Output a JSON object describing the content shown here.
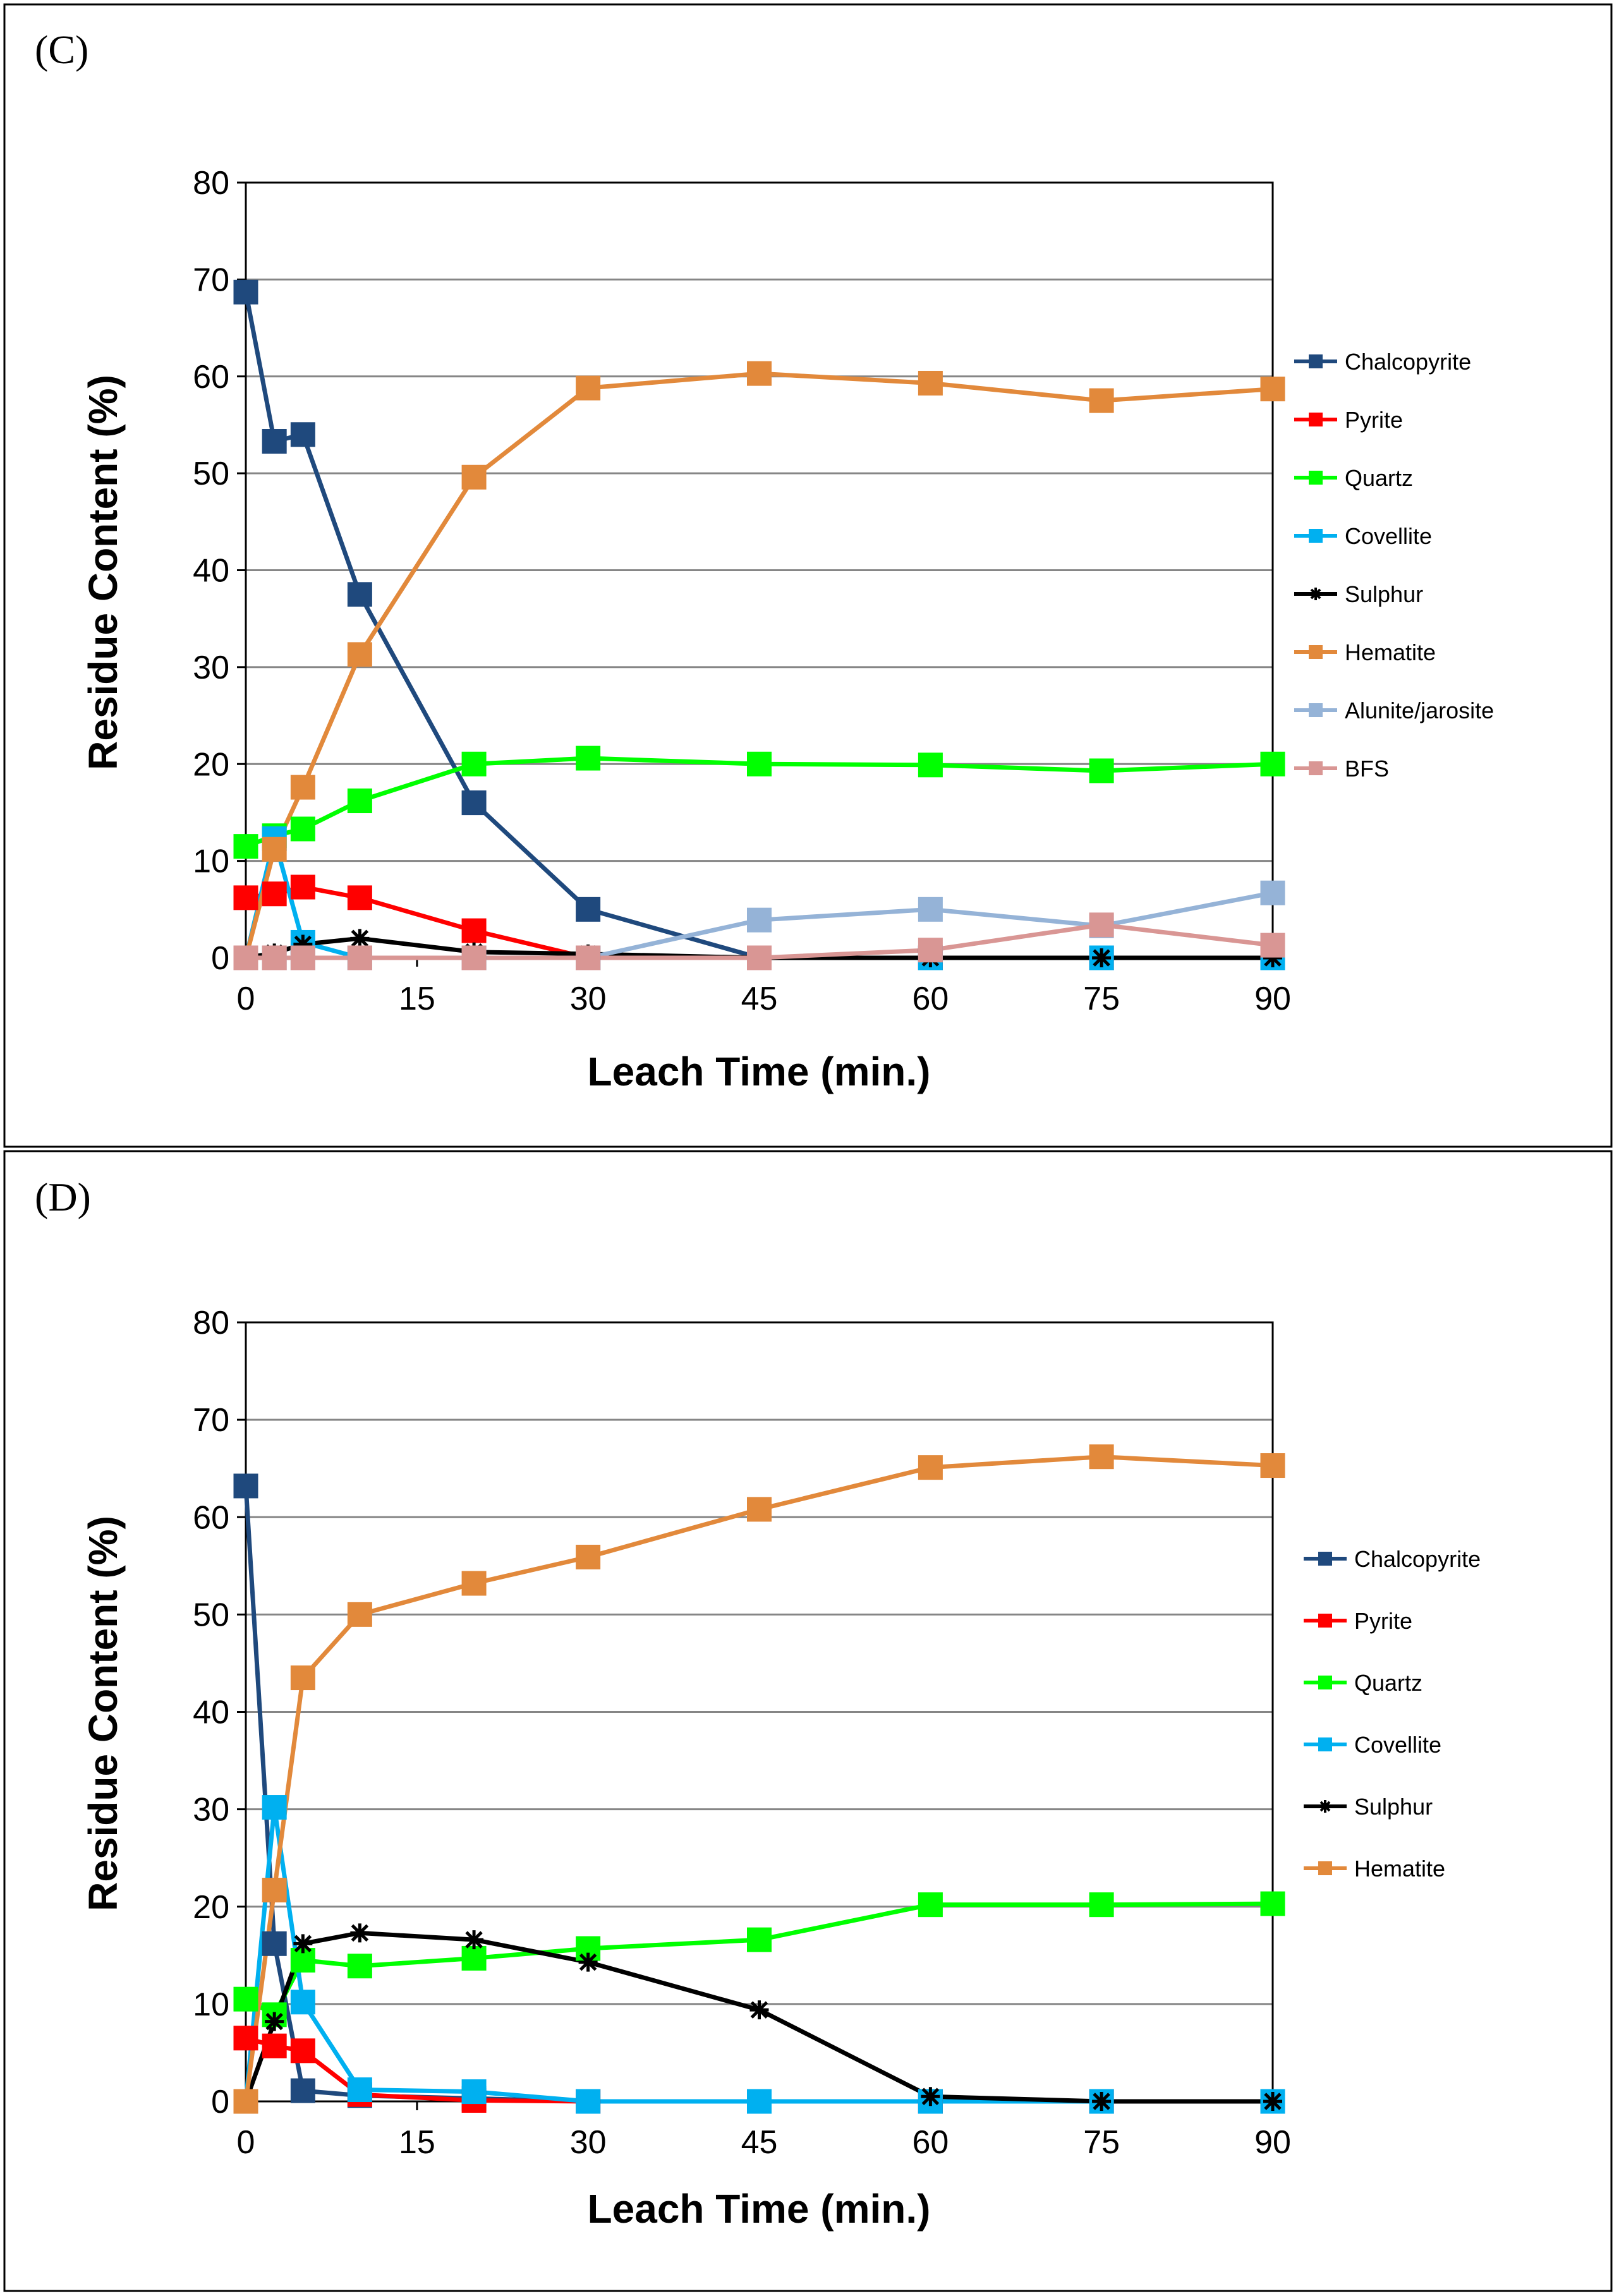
{
  "figure": {
    "panels": [
      "(C)",
      "(D)"
    ]
  },
  "chart_data": [
    {
      "type": "line",
      "panel_label": "(C)",
      "xlabel": "Leach Time (min.)",
      "ylabel": "Residue Content (%)",
      "ylim": [
        0,
        80
      ],
      "yticks": [
        0,
        10,
        20,
        30,
        40,
        50,
        60,
        70,
        80
      ],
      "x_categories": [
        "0",
        "15",
        "30",
        "45",
        "60",
        "75",
        "90"
      ],
      "x_note": "points are placed on a categorical axis; 2.5, 5, 10, 20 min sit between the 0 and 30 categories",
      "x": [
        0,
        2.5,
        5,
        10,
        20,
        30,
        45,
        60,
        75,
        90
      ],
      "grid": true,
      "legend_position": "right",
      "series": [
        {
          "name": "Chalcopyrite",
          "color": "#1f497d",
          "marker": "square",
          "values": [
            68.7,
            53.3,
            54.0,
            37.5,
            16.0,
            5.0,
            0,
            0,
            0,
            0
          ]
        },
        {
          "name": "Pyrite",
          "color": "#ff0000",
          "marker": "square",
          "values": [
            6.2,
            6.6,
            7.3,
            6.2,
            2.8,
            0,
            0,
            0,
            0,
            0
          ]
        },
        {
          "name": "Quartz",
          "color": "#00ff00",
          "marker": "square",
          "values": [
            11.5,
            12.6,
            13.3,
            16.2,
            20.0,
            20.6,
            20.0,
            19.9,
            19.3,
            20.0
          ]
        },
        {
          "name": "Covellite",
          "color": "#00b0f0",
          "marker": "square",
          "values": [
            0,
            12.3,
            1.6,
            0,
            0,
            0,
            0,
            0,
            0,
            0
          ]
        },
        {
          "name": "Sulphur",
          "color": "#000000",
          "marker": "star",
          "values": [
            0,
            0.5,
            1.4,
            2.0,
            0.6,
            0.4,
            0,
            0,
            0,
            0
          ]
        },
        {
          "name": "Hematite",
          "color": "#e2893b",
          "marker": "square",
          "values": [
            0,
            11.2,
            17.6,
            31.3,
            49.6,
            58.8,
            60.3,
            59.3,
            57.5,
            58.7
          ]
        },
        {
          "name": "Alunite/jarosite",
          "color": "#95b3d7",
          "marker": "square",
          "values": [
            0,
            0,
            0,
            0,
            0,
            0,
            3.9,
            5.0,
            3.3,
            6.7
          ]
        },
        {
          "name": "BFS",
          "color": "#d99694",
          "marker": "square",
          "values": [
            0,
            0,
            0,
            0,
            0,
            0,
            0,
            0.8,
            3.4,
            1.3
          ]
        }
      ]
    },
    {
      "type": "line",
      "panel_label": "(D)",
      "xlabel": "Leach Time (min.)",
      "ylabel": "Residue Content (%)",
      "ylim": [
        0,
        80
      ],
      "yticks": [
        0,
        10,
        20,
        30,
        40,
        50,
        60,
        70,
        80
      ],
      "x_categories": [
        "0",
        "15",
        "30",
        "45",
        "60",
        "75",
        "90"
      ],
      "x_note": "points are placed on a categorical axis; 2.5, 5, 10, 20 min sit between the 0 and 30 categories",
      "x": [
        0,
        2.5,
        5,
        10,
        20,
        30,
        45,
        60,
        75,
        90
      ],
      "grid": true,
      "legend_position": "right",
      "series": [
        {
          "name": "Chalcopyrite",
          "color": "#1f497d",
          "marker": "square",
          "values": [
            63.2,
            16.2,
            1.1,
            0.6,
            0.3,
            0,
            0,
            0,
            0,
            0
          ]
        },
        {
          "name": "Pyrite",
          "color": "#ff0000",
          "marker": "square",
          "values": [
            6.5,
            5.7,
            5.2,
            0.7,
            0.1,
            0,
            0,
            0,
            0,
            0
          ]
        },
        {
          "name": "Quartz",
          "color": "#00ff00",
          "marker": "square",
          "values": [
            10.5,
            8.9,
            14.5,
            13.9,
            14.7,
            15.7,
            16.6,
            20.2,
            20.2,
            20.3
          ]
        },
        {
          "name": "Covellite",
          "color": "#00b0f0",
          "marker": "square",
          "values": [
            0,
            30.2,
            10.2,
            1.2,
            1.0,
            0,
            0,
            0,
            0,
            0
          ]
        },
        {
          "name": "Sulphur",
          "color": "#000000",
          "marker": "star",
          "values": [
            0,
            8.2,
            16.2,
            17.3,
            16.6,
            14.3,
            9.4,
            0.5,
            0,
            0
          ]
        },
        {
          "name": "Hematite",
          "color": "#e2893b",
          "marker": "square",
          "values": [
            0,
            21.7,
            43.5,
            50.0,
            53.2,
            55.9,
            60.8,
            65.1,
            66.2,
            65.3
          ]
        }
      ]
    }
  ]
}
